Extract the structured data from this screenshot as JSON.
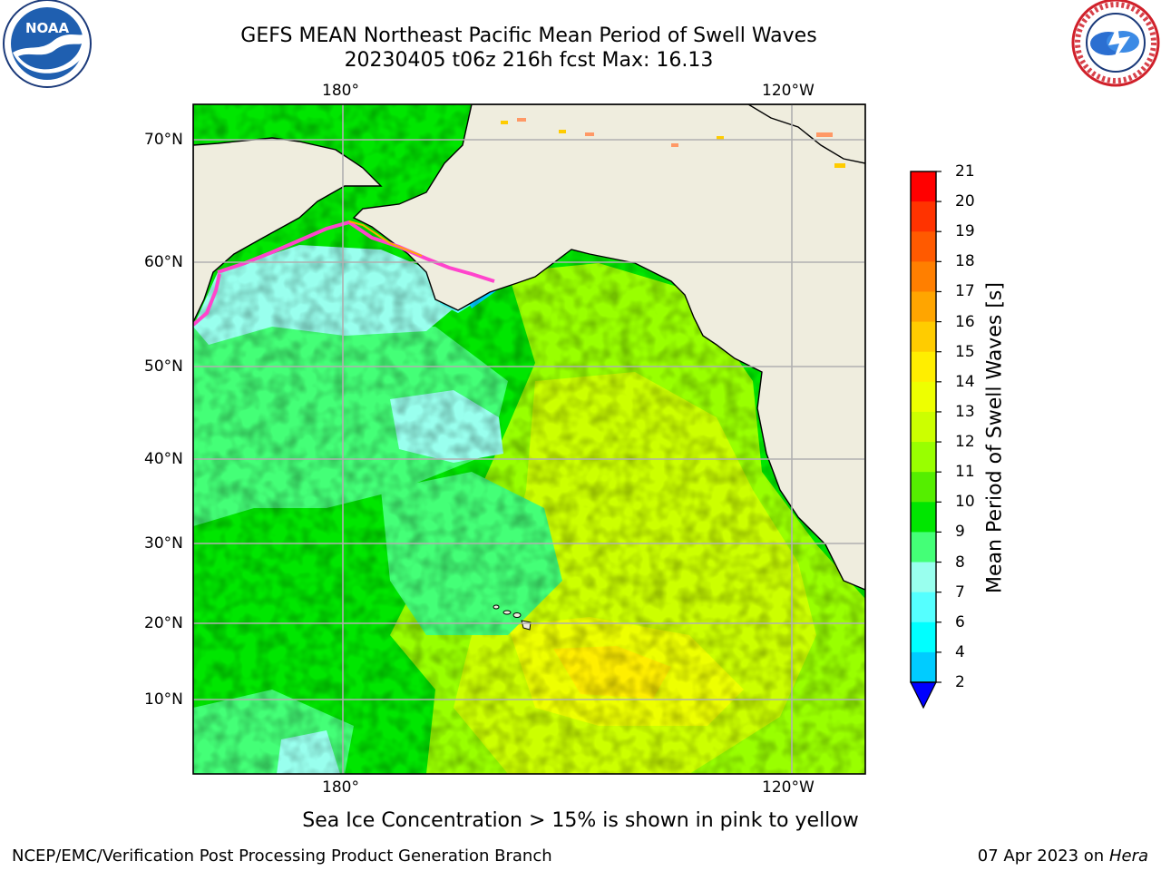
{
  "title": {
    "line1": "GEFS MEAN Northeast Pacific Mean Period of Swell Waves",
    "line2": "20230405 t06z 216h fcst   Max: 16.13"
  },
  "map": {
    "lon_labels_top": [
      "180°",
      "120°W"
    ],
    "lon_labels_bottom": [
      "180°",
      "120°W"
    ],
    "lat_labels": [
      "70°N",
      "60°N",
      "50°N",
      "40°N",
      "30°N",
      "20°N",
      "10°N"
    ],
    "land_color": "#efedde",
    "grid_color": "#b0b0b0"
  },
  "colorbar": {
    "label": "Mean Period of Swell Waves [s]",
    "ticks": [
      "21",
      "20",
      "19",
      "18",
      "17",
      "16",
      "15",
      "14",
      "13",
      "12",
      "11",
      "10",
      "9",
      "8",
      "7",
      "6",
      "4",
      "2"
    ],
    "colors": [
      "#ff0000",
      "#ff3300",
      "#ff5a00",
      "#ff7f00",
      "#ffa500",
      "#ffcc00",
      "#ffee00",
      "#eeff00",
      "#ccff00",
      "#99ff00",
      "#55ee00",
      "#00e600",
      "#44ff77",
      "#99ffee",
      "#55ffff",
      "#00ffff",
      "#00ccff",
      "#0077ff"
    ],
    "under_color": "#0000ff"
  },
  "logos": {
    "noaa_text": "NOAA",
    "nws_text": "NATIONAL WEATHER SERVICE"
  },
  "footer": {
    "note": "Sea Ice Concentration > 15% is shown in pink to yellow",
    "left": "NCEP/EMC/Verification Post Processing Product Generation Branch",
    "right_date": "07 Apr 2023 on ",
    "right_host": "Hera"
  }
}
